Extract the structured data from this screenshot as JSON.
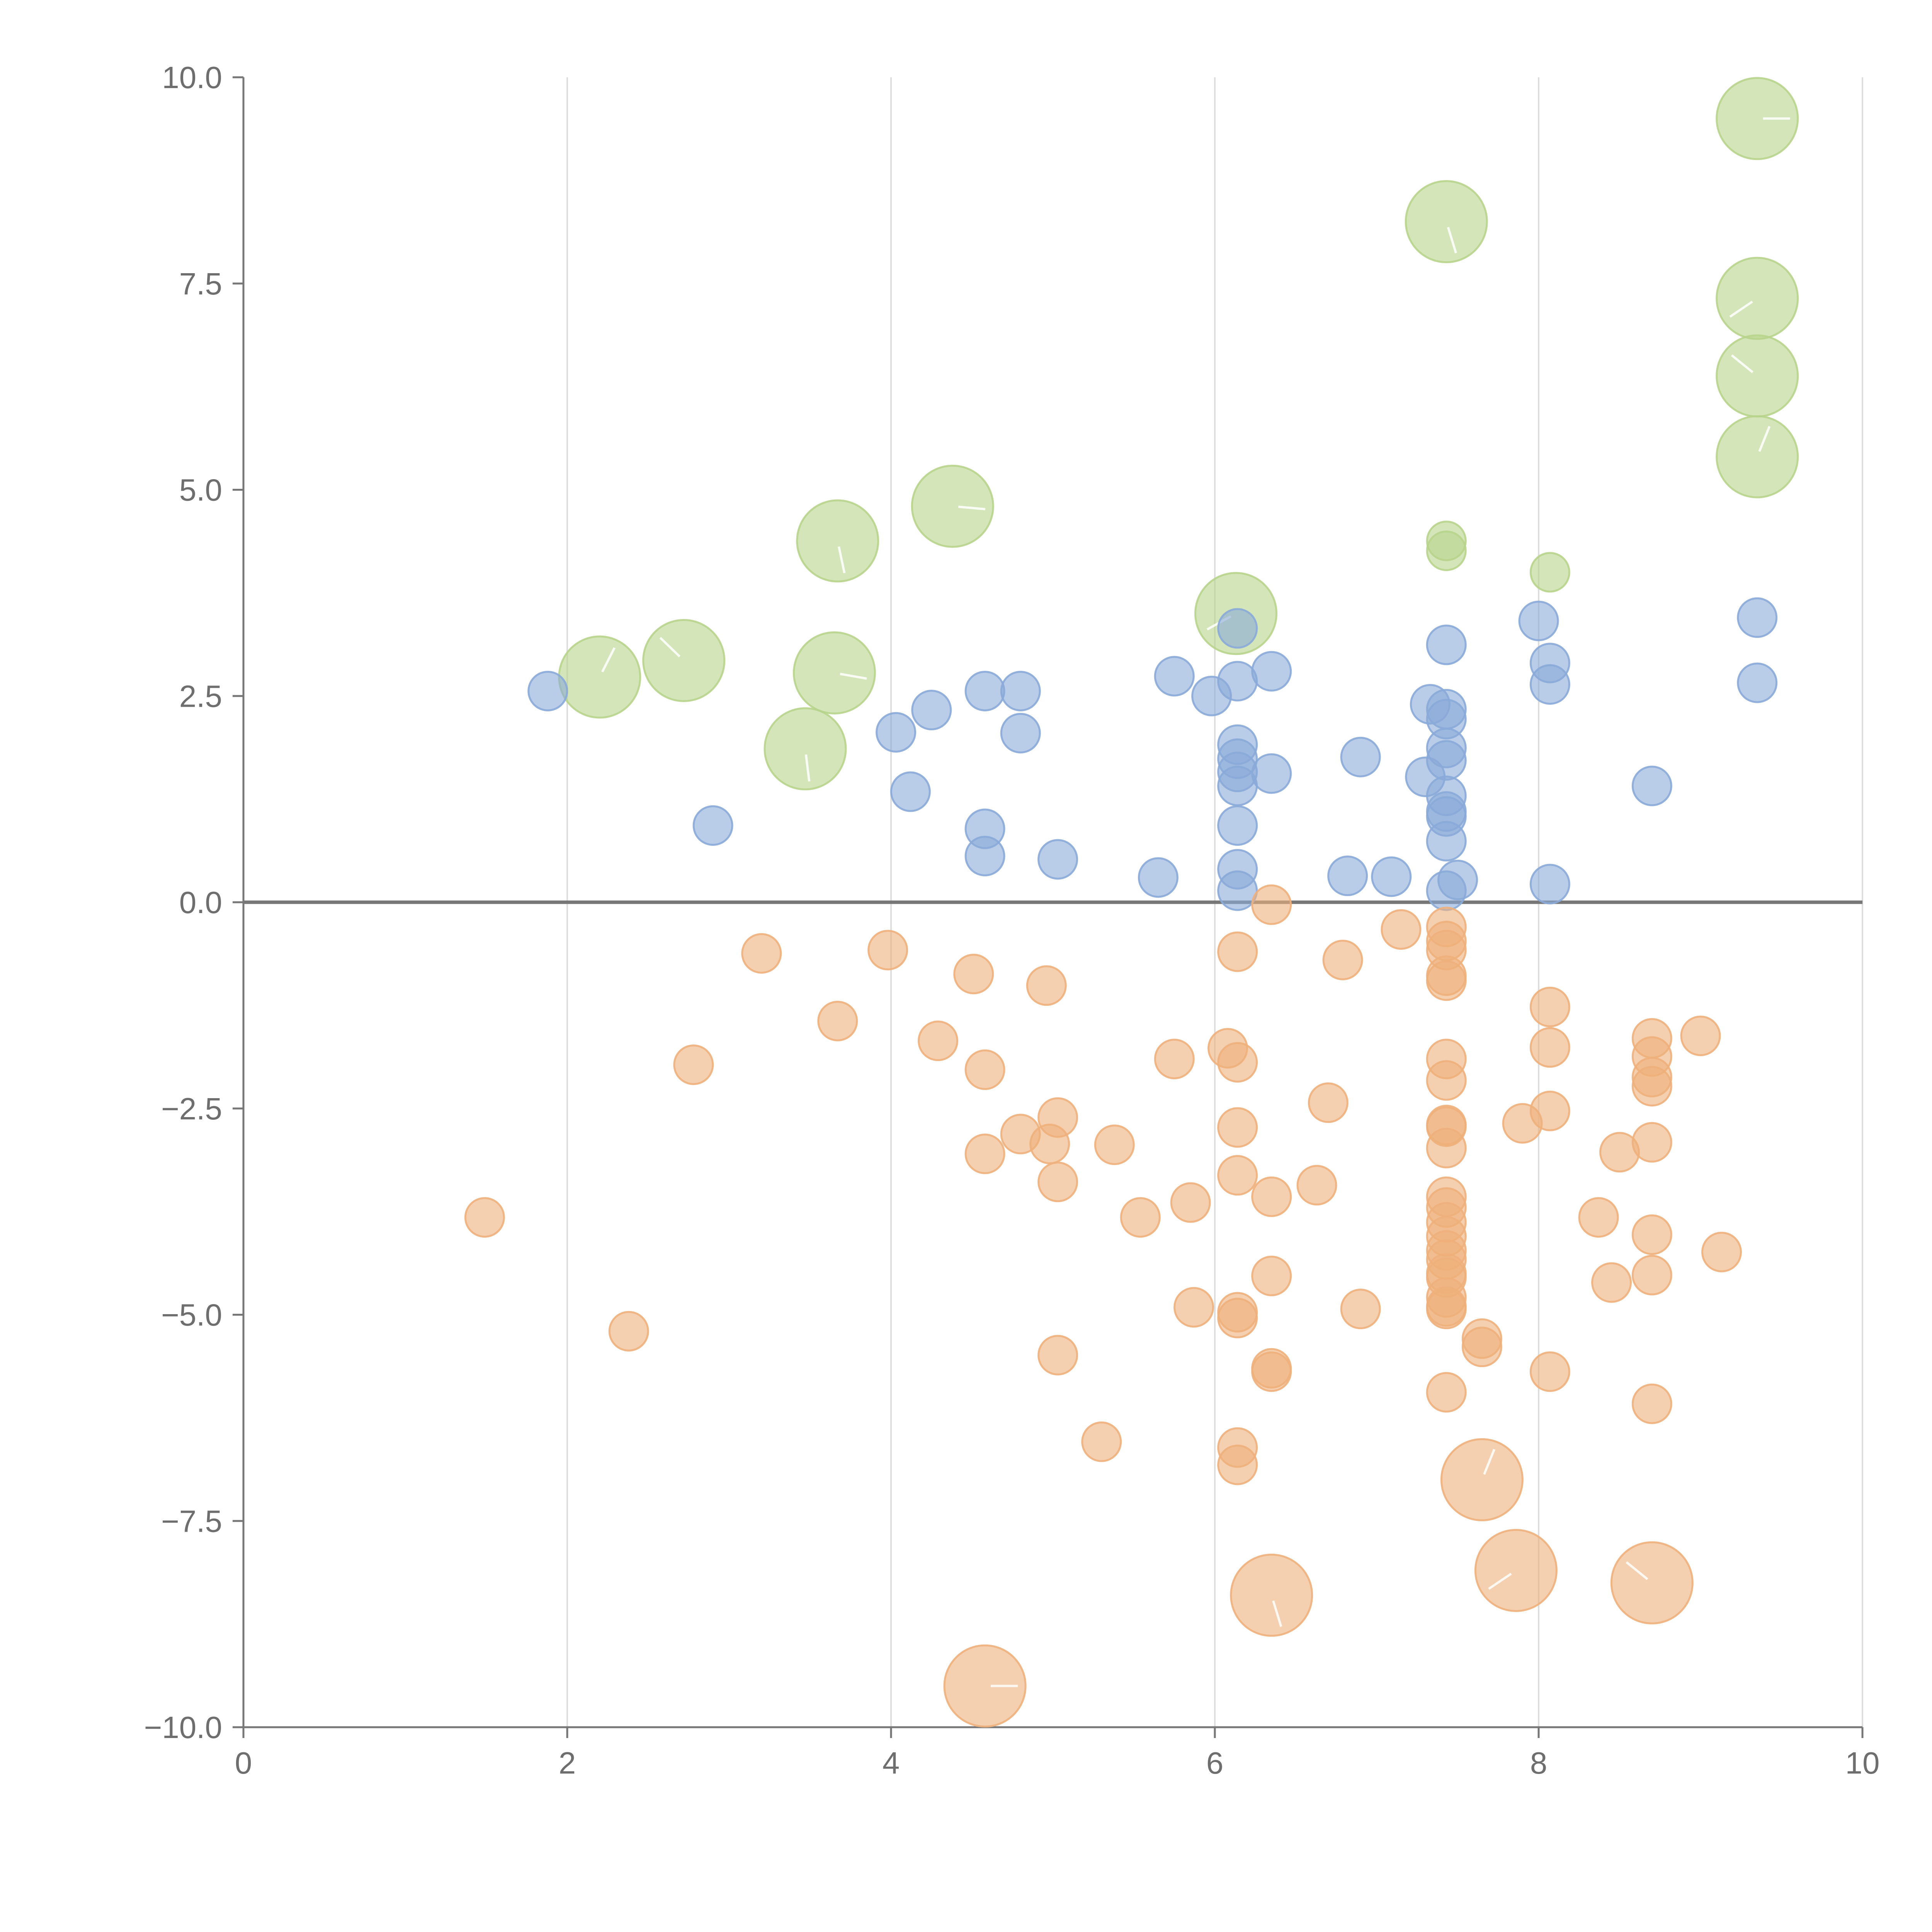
{
  "chart_data": {
    "type": "scatter",
    "title": "",
    "xlabel": "",
    "ylabel": "",
    "xlim": [
      0,
      10
    ],
    "ylim": [
      -10,
      10
    ],
    "x_ticks": [
      0,
      2,
      4,
      6,
      8,
      10
    ],
    "y_ticks": [
      10,
      7.5,
      5,
      2.5,
      0,
      -2.5,
      -5,
      -7.5,
      -10
    ],
    "x_tick_labels": [
      "0",
      "2",
      "4",
      "6",
      "8",
      "10"
    ],
    "y_tick_labels": [
      "10.0",
      "7.5",
      "5.0",
      "2.5",
      "0.0",
      "−2.5",
      "−5.0",
      "−7.5",
      "−10.0"
    ],
    "grid": "vertical",
    "zero_line": 0,
    "series": [
      {
        "name": "green",
        "color": "#b8d48c",
        "points": [
          [
            9.35,
            9.5,
            3
          ],
          [
            7.43,
            8.25,
            3
          ],
          [
            9.35,
            7.32,
            3
          ],
          [
            9.35,
            6.38,
            3
          ],
          [
            9.35,
            5.4,
            3
          ],
          [
            4.38,
            4.8,
            3
          ],
          [
            3.67,
            4.38,
            3
          ],
          [
            6.13,
            3.5,
            3
          ],
          [
            2.72,
            2.93,
            3
          ],
          [
            2.2,
            2.73,
            3
          ],
          [
            3.65,
            2.78,
            3
          ],
          [
            3.47,
            1.86,
            3
          ],
          [
            7.43,
            4.38,
            1
          ],
          [
            7.43,
            4.26,
            1
          ],
          [
            8.07,
            4.0,
            1
          ]
        ]
      },
      {
        "name": "blue",
        "color": "#8aaad8",
        "points": [
          [
            1.88,
            2.56,
            1
          ],
          [
            2.9,
            0.93,
            1
          ],
          [
            4.03,
            2.06,
            1
          ],
          [
            4.12,
            1.34,
            1
          ],
          [
            4.25,
            2.33,
            1
          ],
          [
            4.58,
            2.56,
            1
          ],
          [
            4.8,
            2.56,
            1
          ],
          [
            4.8,
            2.05,
            1
          ],
          [
            4.58,
            0.89,
            1
          ],
          [
            4.58,
            0.56,
            1
          ],
          [
            5.03,
            0.52,
            1
          ],
          [
            5.65,
            0.3,
            1
          ],
          [
            5.75,
            2.74,
            1
          ],
          [
            5.98,
            2.5,
            1
          ],
          [
            6.14,
            3.32,
            1
          ],
          [
            6.14,
            2.68,
            1
          ],
          [
            6.35,
            2.8,
            1
          ],
          [
            6.14,
            1.91,
            1
          ],
          [
            6.14,
            1.74,
            1
          ],
          [
            6.14,
            1.58,
            1
          ],
          [
            6.14,
            1.41,
            1
          ],
          [
            6.35,
            1.56,
            1
          ],
          [
            6.14,
            0.93,
            1
          ],
          [
            6.14,
            0.4,
            1
          ],
          [
            6.14,
            0.14,
            1
          ],
          [
            6.82,
            0.32,
            1
          ],
          [
            6.9,
            1.76,
            1
          ],
          [
            7.09,
            0.31,
            1
          ],
          [
            7.3,
            1.52,
            1
          ],
          [
            7.33,
            2.4,
            1
          ],
          [
            7.43,
            3.12,
            1
          ],
          [
            7.43,
            2.34,
            1
          ],
          [
            7.43,
            2.22,
            1
          ],
          [
            7.43,
            1.87,
            1
          ],
          [
            7.43,
            1.72,
            1
          ],
          [
            7.43,
            1.29,
            1
          ],
          [
            7.43,
            1.1,
            1
          ],
          [
            7.43,
            1.04,
            1
          ],
          [
            7.43,
            0.74,
            1
          ],
          [
            7.43,
            0.14,
            1
          ],
          [
            7.5,
            0.27,
            1
          ],
          [
            8.0,
            3.41,
            1
          ],
          [
            8.07,
            2.9,
            1
          ],
          [
            8.07,
            2.64,
            1
          ],
          [
            8.07,
            0.22,
            1
          ],
          [
            8.7,
            1.41,
            1
          ],
          [
            9.35,
            3.45,
            1
          ],
          [
            9.35,
            2.66,
            1
          ]
        ]
      },
      {
        "name": "orange",
        "color": "#eeb07c",
        "points": [
          [
            4.58,
            -9.5,
            3
          ],
          [
            6.35,
            -8.4,
            3
          ],
          [
            7.86,
            -8.1,
            3
          ],
          [
            8.7,
            -8.25,
            3
          ],
          [
            7.65,
            -7.0,
            3
          ],
          [
            1.49,
            -3.82,
            1
          ],
          [
            2.38,
            -5.2,
            1
          ],
          [
            2.78,
            -1.97,
            1
          ],
          [
            3.2,
            -0.62,
            1
          ],
          [
            3.67,
            -1.44,
            1
          ],
          [
            3.98,
            -0.58,
            1
          ],
          [
            4.29,
            -1.68,
            1
          ],
          [
            4.51,
            -0.87,
            1
          ],
          [
            4.58,
            -2.03,
            1
          ],
          [
            4.58,
            -3.05,
            1
          ],
          [
            4.8,
            -2.81,
            1
          ],
          [
            4.96,
            -1.01,
            1
          ],
          [
            4.98,
            -2.93,
            1
          ],
          [
            5.03,
            -2.61,
            1
          ],
          [
            5.03,
            -3.39,
            1
          ],
          [
            5.03,
            -5.49,
            1
          ],
          [
            5.3,
            -6.54,
            1
          ],
          [
            5.38,
            -2.94,
            1
          ],
          [
            5.54,
            -3.82,
            1
          ],
          [
            5.75,
            -1.9,
            1
          ],
          [
            5.85,
            -3.64,
            1
          ],
          [
            5.87,
            -4.91,
            1
          ],
          [
            6.08,
            -1.77,
            1
          ],
          [
            6.14,
            -0.6,
            1
          ],
          [
            6.14,
            -1.94,
            1
          ],
          [
            6.14,
            -2.73,
            1
          ],
          [
            6.14,
            -3.31,
            1
          ],
          [
            6.14,
            -4.97,
            1
          ],
          [
            6.14,
            -5.04,
            1
          ],
          [
            6.14,
            -6.61,
            1
          ],
          [
            6.14,
            -6.82,
            1
          ],
          [
            6.35,
            -0.03,
            1
          ],
          [
            6.35,
            -3.57,
            1
          ],
          [
            6.35,
            -4.53,
            1
          ],
          [
            6.35,
            -5.65,
            1
          ],
          [
            6.35,
            -5.69,
            1
          ],
          [
            6.63,
            -3.43,
            1
          ],
          [
            6.7,
            -2.43,
            1
          ],
          [
            6.79,
            -0.7,
            1
          ],
          [
            6.9,
            -4.93,
            1
          ],
          [
            7.15,
            -0.33,
            1
          ],
          [
            7.43,
            -0.3,
            1
          ],
          [
            7.43,
            -0.47,
            1
          ],
          [
            7.43,
            -0.58,
            1
          ],
          [
            7.43,
            -0.89,
            1
          ],
          [
            7.43,
            -0.95,
            1
          ],
          [
            7.43,
            -1.9,
            1
          ],
          [
            7.43,
            -2.16,
            1
          ],
          [
            7.43,
            -2.7,
            1
          ],
          [
            7.43,
            -2.72,
            1
          ],
          [
            7.43,
            -2.98,
            1
          ],
          [
            7.43,
            -3.57,
            1
          ],
          [
            7.43,
            -3.7,
            1
          ],
          [
            7.43,
            -3.88,
            1
          ],
          [
            7.43,
            -4.05,
            1
          ],
          [
            7.43,
            -4.22,
            1
          ],
          [
            7.43,
            -4.33,
            1
          ],
          [
            7.43,
            -4.5,
            1
          ],
          [
            7.43,
            -4.55,
            1
          ],
          [
            7.43,
            -4.79,
            1
          ],
          [
            7.43,
            -4.9,
            1
          ],
          [
            7.43,
            -4.93,
            1
          ],
          [
            7.43,
            -5.94,
            1
          ],
          [
            7.65,
            -5.29,
            1
          ],
          [
            7.65,
            -5.39,
            1
          ],
          [
            7.9,
            -2.68,
            1
          ],
          [
            8.07,
            -1.27,
            1
          ],
          [
            8.07,
            -1.76,
            1
          ],
          [
            8.07,
            -2.53,
            1
          ],
          [
            8.07,
            -5.69,
            1
          ],
          [
            8.37,
            -3.82,
            1
          ],
          [
            8.45,
            -4.61,
            1
          ],
          [
            8.5,
            -3.03,
            1
          ],
          [
            8.7,
            -1.65,
            1
          ],
          [
            8.7,
            -1.87,
            1
          ],
          [
            8.7,
            -2.12,
            1
          ],
          [
            8.7,
            -2.23,
            1
          ],
          [
            8.7,
            -2.91,
            1
          ],
          [
            8.7,
            -4.03,
            1
          ],
          [
            8.7,
            -4.52,
            1
          ],
          [
            8.7,
            -6.08,
            1
          ],
          [
            9.0,
            -1.62,
            1
          ],
          [
            9.13,
            -4.24,
            1
          ]
        ]
      }
    ]
  }
}
